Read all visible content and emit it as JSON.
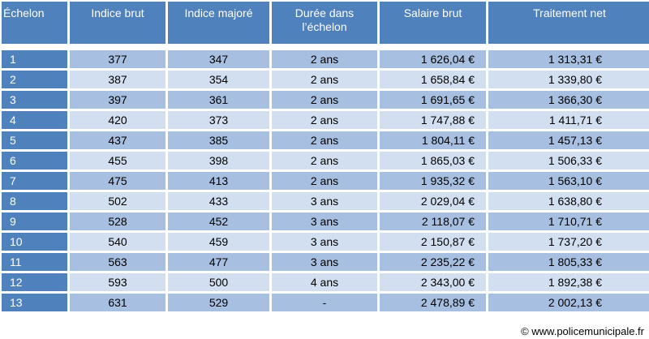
{
  "headers": [
    "Échelon",
    "Indice brut",
    "Indice majoré",
    "Durée dans l’échelon",
    "Salaire brut",
    "Traitement net"
  ],
  "rows": [
    [
      "1",
      "377",
      "347",
      "2 ans",
      "1 626,04 €",
      "1 313,31 €"
    ],
    [
      "2",
      "387",
      "354",
      "2 ans",
      "1 658,84 €",
      "1 339,80 €"
    ],
    [
      "3",
      "397",
      "361",
      "2 ans",
      "1 691,65 €",
      "1 366,30 €"
    ],
    [
      "4",
      "420",
      "373",
      "2 ans",
      "1 747,88 €",
      "1 411,71 €"
    ],
    [
      "5",
      "437",
      "385",
      "2 ans",
      "1 804,11 €",
      "1 457,13 €"
    ],
    [
      "6",
      "455",
      "398",
      "2 ans",
      "1 865,03 €",
      "1 506,33 €"
    ],
    [
      "7",
      "475",
      "413",
      "2 ans",
      "1 935,32 €",
      "1 563,10 €"
    ],
    [
      "8",
      "502",
      "433",
      "3 ans",
      "2 029,04 €",
      "1 638,80 €"
    ],
    [
      "9",
      "528",
      "452",
      "3 ans",
      "2 118,07 €",
      "1 710,71 €"
    ],
    [
      "10",
      "540",
      "459",
      "3 ans",
      "2 150,87 €",
      "1 737,20 €"
    ],
    [
      "11",
      "563",
      "477",
      "3 ans",
      "2 235,22 €",
      "1 805,33 €"
    ],
    [
      "12",
      "593",
      "500",
      "4 ans",
      "2 343,00 €",
      "1 892,38 €"
    ],
    [
      "13",
      "631",
      "529",
      "-",
      "2 478,89 €",
      "2 002,13 €"
    ]
  ],
  "footer": "© www.policemunicipale.fr",
  "colors": {
    "header": "#4f81bd",
    "row_dark": "#a7bfe0",
    "row_light": "#d2dff0"
  }
}
